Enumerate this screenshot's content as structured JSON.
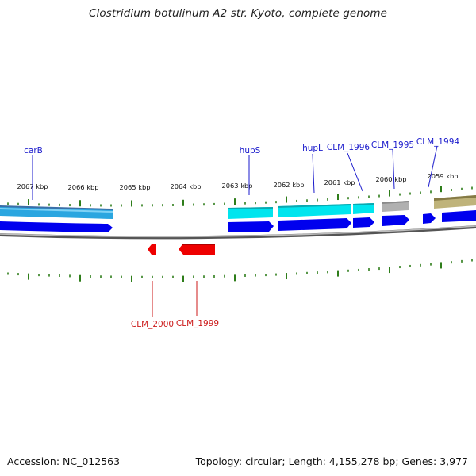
{
  "title": "Clostridium botulinum A2 str. Kyoto, complete genome",
  "footer": {
    "accession": "Accession: NC_012563",
    "summary": "Topology: circular; Length: 4,155,278 bp; Genes: 3,977"
  },
  "colors": {
    "forward_label": "#1a1acc",
    "reverse_label": "#cc1a1a",
    "tick": "#2e7d1a",
    "backbone": "#888888",
    "cds_forward": "#0000ee",
    "cds_reverse": "#ee0000",
    "feature_cyan": "#00e5ee",
    "feature_blue_outer": "#3a7fd0",
    "feature_gray": "#b0b0b0",
    "feature_olive": "#bfb37a"
  },
  "scale_labels": [
    "2067 kbp",
    "2066 kbp",
    "2065 kbp",
    "2064 kbp",
    "2063 kbp",
    "2062 kbp",
    "2061 kbp",
    "2060 kbp",
    "2059 kbp"
  ],
  "forward_gene_labels": [
    "carB",
    "hupS",
    "hupL",
    "CLM_1996",
    "CLM_1995",
    "CLM_1994"
  ],
  "reverse_gene_labels": [
    "CLM_2000",
    "CLM_1999"
  ]
}
